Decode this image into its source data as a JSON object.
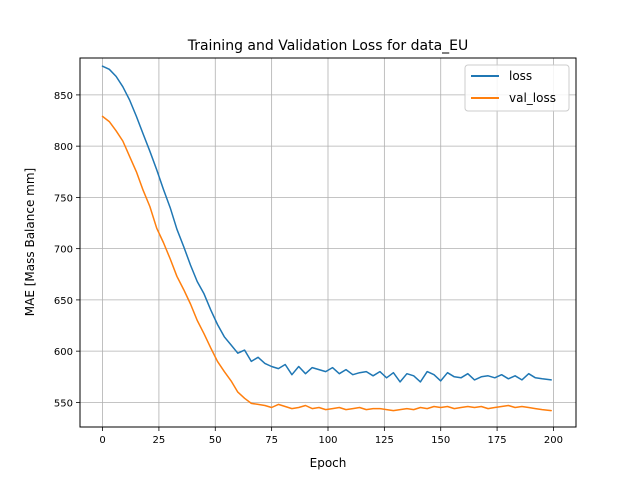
{
  "chart_data": {
    "type": "line",
    "title": "Training and Validation Loss for data_EU",
    "xlabel": "Epoch",
    "ylabel": "MAE [Mass Balance mm]",
    "xlim": [
      -10,
      210
    ],
    "ylim": [
      526,
      886
    ],
    "xticks": [
      0,
      25,
      50,
      75,
      100,
      125,
      150,
      175,
      200
    ],
    "yticks": [
      550,
      600,
      650,
      700,
      750,
      800,
      850
    ],
    "grid": true,
    "legend_position": "top-right",
    "series": [
      {
        "name": "loss",
        "color": "#1f77b4",
        "x": [
          0,
          3,
          6,
          9,
          12,
          15,
          18,
          21,
          24,
          27,
          30,
          33,
          36,
          39,
          42,
          45,
          48,
          51,
          54,
          57,
          60,
          63,
          66,
          69,
          72,
          75,
          78,
          81,
          84,
          87,
          90,
          93,
          96,
          99,
          102,
          105,
          108,
          111,
          114,
          117,
          120,
          123,
          126,
          129,
          132,
          135,
          138,
          141,
          144,
          147,
          150,
          153,
          156,
          159,
          162,
          165,
          168,
          171,
          174,
          177,
          180,
          183,
          186,
          189,
          192,
          195,
          199
        ],
        "y": [
          878,
          875,
          868,
          858,
          845,
          829,
          812,
          795,
          777,
          758,
          740,
          719,
          702,
          684,
          668,
          656,
          640,
          626,
          614,
          606,
          598,
          601,
          590,
          594,
          588,
          585,
          583,
          587,
          577,
          585,
          578,
          584,
          582,
          580,
          584,
          578,
          582,
          577,
          579,
          580,
          576,
          580,
          574,
          579,
          570,
          578,
          576,
          570,
          580,
          577,
          571,
          579,
          575,
          574,
          578,
          572,
          575,
          576,
          574,
          577,
          573,
          576,
          572,
          578,
          574,
          573,
          572
        ]
      },
      {
        "name": "val_loss",
        "color": "#ff7f0e",
        "x": [
          0,
          3,
          6,
          9,
          12,
          15,
          18,
          21,
          24,
          27,
          30,
          33,
          36,
          39,
          42,
          45,
          48,
          51,
          54,
          57,
          60,
          63,
          66,
          69,
          72,
          75,
          78,
          81,
          84,
          87,
          90,
          93,
          96,
          99,
          102,
          105,
          108,
          111,
          114,
          117,
          120,
          123,
          126,
          129,
          132,
          135,
          138,
          141,
          144,
          147,
          150,
          153,
          156,
          159,
          162,
          165,
          168,
          171,
          174,
          177,
          180,
          183,
          186,
          189,
          192,
          195,
          199
        ],
        "y": [
          829,
          824,
          815,
          805,
          790,
          775,
          757,
          741,
          720,
          706,
          690,
          673,
          660,
          646,
          630,
          617,
          603,
          590,
          580,
          571,
          560,
          554,
          549,
          548,
          547,
          545,
          548,
          546,
          544,
          545,
          547,
          544,
          545,
          543,
          544,
          545,
          543,
          544,
          545,
          543,
          544,
          544,
          543,
          542,
          543,
          544,
          543,
          545,
          544,
          546,
          545,
          546,
          544,
          545,
          546,
          545,
          546,
          544,
          545,
          546,
          547,
          545,
          546,
          545,
          544,
          543,
          542
        ]
      }
    ]
  }
}
